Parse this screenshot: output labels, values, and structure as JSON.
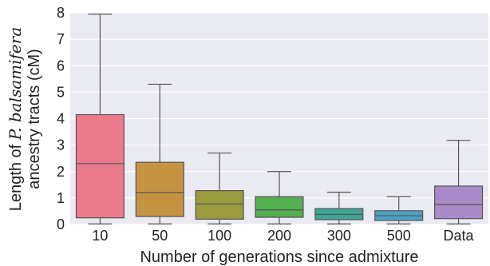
{
  "chart_data": {
    "type": "box",
    "title": "",
    "xlabel": "Number of generations since admixture",
    "ylabel": {
      "line1_prefix": "Length of ",
      "line1_math": "P. balsamifera",
      "line2": "ancestry tracts (cM)"
    },
    "ylim": [
      0,
      8
    ],
    "yticks": [
      0,
      1,
      2,
      3,
      4,
      5,
      6,
      7,
      8
    ],
    "grid": true,
    "background": "#eaeaf2",
    "categories": [
      "10",
      "50",
      "100",
      "200",
      "300",
      "500",
      "Data"
    ],
    "boxes": [
      {
        "category": "10",
        "whislo": 0.02,
        "q1": 0.25,
        "med": 2.3,
        "q3": 4.15,
        "whishi": 7.95,
        "color": "#ea7a8c"
      },
      {
        "category": "50",
        "whislo": 0.02,
        "q1": 0.3,
        "med": 1.2,
        "q3": 2.35,
        "whishi": 5.3,
        "color": "#c59443"
      },
      {
        "category": "100",
        "whislo": 0.02,
        "q1": 0.2,
        "med": 0.78,
        "q3": 1.28,
        "whishi": 2.7,
        "color": "#9a9a3e"
      },
      {
        "category": "200",
        "whislo": 0.02,
        "q1": 0.27,
        "med": 0.55,
        "q3": 1.05,
        "whishi": 2.0,
        "color": "#55ae51"
      },
      {
        "category": "300",
        "whislo": 0.02,
        "q1": 0.18,
        "med": 0.38,
        "q3": 0.6,
        "whishi": 1.22,
        "color": "#3ea594"
      },
      {
        "category": "500",
        "whislo": 0.02,
        "q1": 0.15,
        "med": 0.33,
        "q3": 0.52,
        "whishi": 1.05,
        "color": "#4aa3c2"
      },
      {
        "category": "Data",
        "whislo": 0.02,
        "q1": 0.22,
        "med": 0.75,
        "q3": 1.45,
        "whishi": 3.18,
        "color": "#a98bca"
      }
    ]
  }
}
